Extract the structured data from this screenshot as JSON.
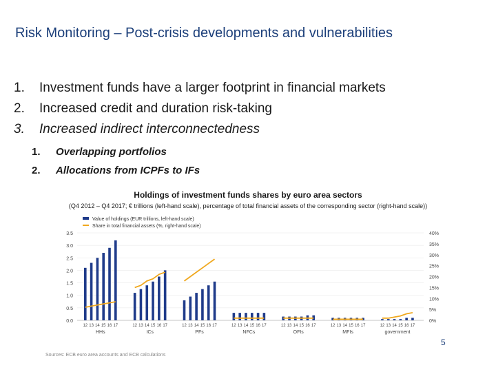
{
  "slide": {
    "title": "Risk Monitoring – Post-crisis developments and vulnerabilities",
    "points": [
      {
        "num": "1.",
        "text": "Investment funds have a larger footprint in financial markets"
      },
      {
        "num": "2.",
        "text": "Increased credit and duration risk-taking"
      },
      {
        "num": "3.",
        "text": "Increased indirect interconnectedness"
      }
    ],
    "subpoints": [
      {
        "num": "1.",
        "text": "Overlapping portfolios"
      },
      {
        "num": "2.",
        "text": "Allocations from ICPFs to IFs"
      }
    ],
    "page_number": "5",
    "source": "Sources: ECB euro area accounts and ECB calculations"
  },
  "chart_data": {
    "type": "bar",
    "title": "Holdings of investment funds shares by euro area sectors",
    "subtitle": "(Q4 2012 – Q4 2017; € trillions (left-hand scale), percentage of total financial assets of the corresponding sector (right-hand scale))",
    "legend": [
      "Value of holdings (EUR trillions, left-hand scale)",
      "Share in total financial assets (%, right-hand scale)"
    ],
    "colors": {
      "bars": "#1f3b8a",
      "line": "#f0a81e"
    },
    "legend_placement": "top-left",
    "y_left": {
      "ticks": [
        "0.0",
        "0.5",
        "1.0",
        "1.5",
        "2.0",
        "2.5",
        "3.0",
        "3.5"
      ],
      "ylim": [
        0,
        3.5
      ]
    },
    "y_right": {
      "ticks": [
        "0%",
        "5%",
        "10%",
        "15%",
        "20%",
        "25%",
        "30%",
        "35%",
        "40%"
      ],
      "ylim": [
        0,
        40
      ]
    },
    "x_tick_labels": [
      "12",
      "13",
      "14",
      "15",
      "16",
      "17"
    ],
    "groups": [
      {
        "label": "HHs",
        "values": [
          2.1,
          2.3,
          2.5,
          2.7,
          2.9,
          3.2
        ],
        "share": [
          6,
          6.5,
          7,
          7.5,
          8,
          8.5
        ]
      },
      {
        "label": "ICs",
        "values": [
          1.1,
          1.25,
          1.4,
          1.55,
          1.75,
          2.0
        ],
        "share": [
          15,
          16,
          18,
          19,
          21,
          22
        ]
      },
      {
        "label": "PFs",
        "values": [
          0.8,
          0.95,
          1.1,
          1.25,
          1.4,
          1.55
        ],
        "share": [
          18,
          20,
          22,
          24,
          26,
          28
        ]
      },
      {
        "label": "NFCs",
        "values": [
          0.3,
          0.3,
          0.3,
          0.3,
          0.3,
          0.3
        ],
        "share": [
          1,
          1,
          1,
          1,
          1,
          1
        ]
      },
      {
        "label": "OFIs",
        "values": [
          0.15,
          0.15,
          0.15,
          0.15,
          0.2,
          0.2
        ],
        "share": [
          1,
          1,
          1,
          1,
          1,
          1
        ]
      },
      {
        "label": "MFIs",
        "values": [
          0.1,
          0.1,
          0.1,
          0.1,
          0.1,
          0.1
        ],
        "share": [
          0.5,
          0.5,
          0.5,
          0.5,
          0.5,
          0.5
        ]
      },
      {
        "label": "government",
        "values": [
          0.05,
          0.05,
          0.05,
          0.05,
          0.1,
          0.1
        ],
        "share": [
          1,
          1,
          1.5,
          2,
          3,
          3.5
        ]
      }
    ]
  }
}
